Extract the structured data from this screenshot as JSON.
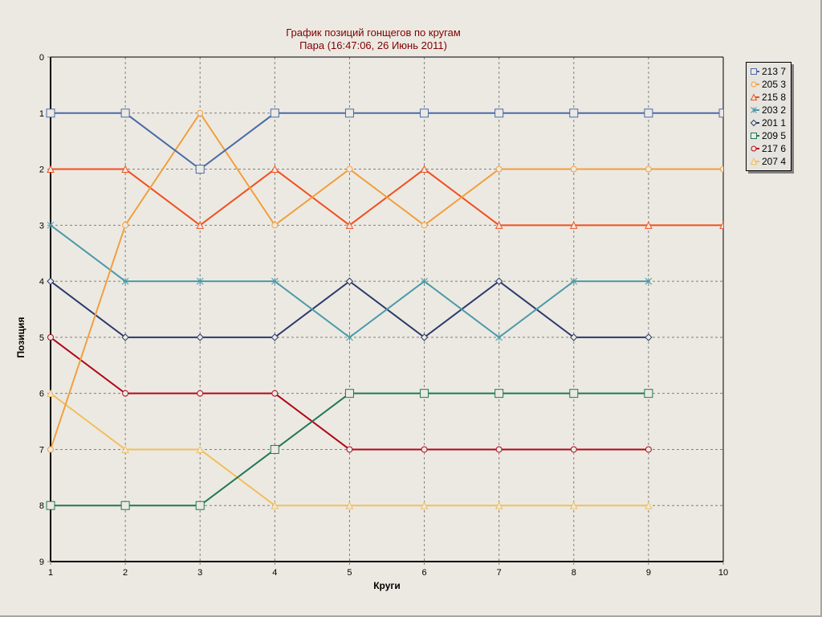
{
  "chart_data": {
    "type": "line",
    "title": "График позиций гонщегов по кругам",
    "subtitle": "Пара  (16:47:06, 26 Июнь 2011)",
    "xlabel": "Круги",
    "ylabel": "Позиция",
    "x": [
      1,
      2,
      3,
      4,
      5,
      6,
      7,
      8,
      9,
      10
    ],
    "xlim": [
      1,
      10
    ],
    "ylim": [
      0,
      9
    ],
    "y_inverted": true,
    "yticks": [
      "0",
      "1",
      "2",
      "3",
      "4",
      "5",
      "6",
      "7",
      "8",
      "9"
    ],
    "xticks": [
      "1",
      "2",
      "3",
      "4",
      "5",
      "6",
      "7",
      "8",
      "9",
      "10"
    ],
    "grid": true,
    "legend_position": "right",
    "series": [
      {
        "name": "213 7",
        "color": "#4a6aa8",
        "marker": "square",
        "values": [
          1,
          1,
          2,
          1,
          1,
          1,
          1,
          1,
          1,
          1
        ]
      },
      {
        "name": "205 3",
        "color": "#f0a040",
        "marker": "circle",
        "values": [
          7,
          3,
          1,
          3,
          2,
          3,
          2,
          2,
          2,
          2
        ]
      },
      {
        "name": "215 8",
        "color": "#f05020",
        "marker": "triangle",
        "values": [
          2,
          2,
          3,
          2,
          3,
          2,
          3,
          3,
          3,
          3
        ]
      },
      {
        "name": "203 2",
        "color": "#4a9aa8",
        "marker": "star",
        "values": [
          3,
          4,
          4,
          4,
          5,
          4,
          5,
          4,
          4
        ]
      },
      {
        "name": "201 1",
        "color": "#2a3a6a",
        "marker": "diamond",
        "values": [
          4,
          5,
          5,
          5,
          4,
          5,
          4,
          5,
          5
        ]
      },
      {
        "name": "209 5",
        "color": "#207858",
        "marker": "square",
        "values": [
          8,
          8,
          8,
          7,
          6,
          6,
          6,
          6,
          6
        ]
      },
      {
        "name": "217 6",
        "color": "#b00818",
        "marker": "circle",
        "values": [
          5,
          6,
          6,
          6,
          7,
          7,
          7,
          7,
          7
        ]
      },
      {
        "name": "207 4",
        "color": "#f0c060",
        "marker": "triangle",
        "values": [
          6,
          7,
          7,
          8,
          8,
          8,
          8,
          8,
          8
        ]
      }
    ]
  },
  "legend": {
    "items": [
      "213 7",
      "205 3",
      "215 8",
      "203 2",
      "201 1",
      "209 5",
      "217 6",
      "207 4"
    ]
  }
}
